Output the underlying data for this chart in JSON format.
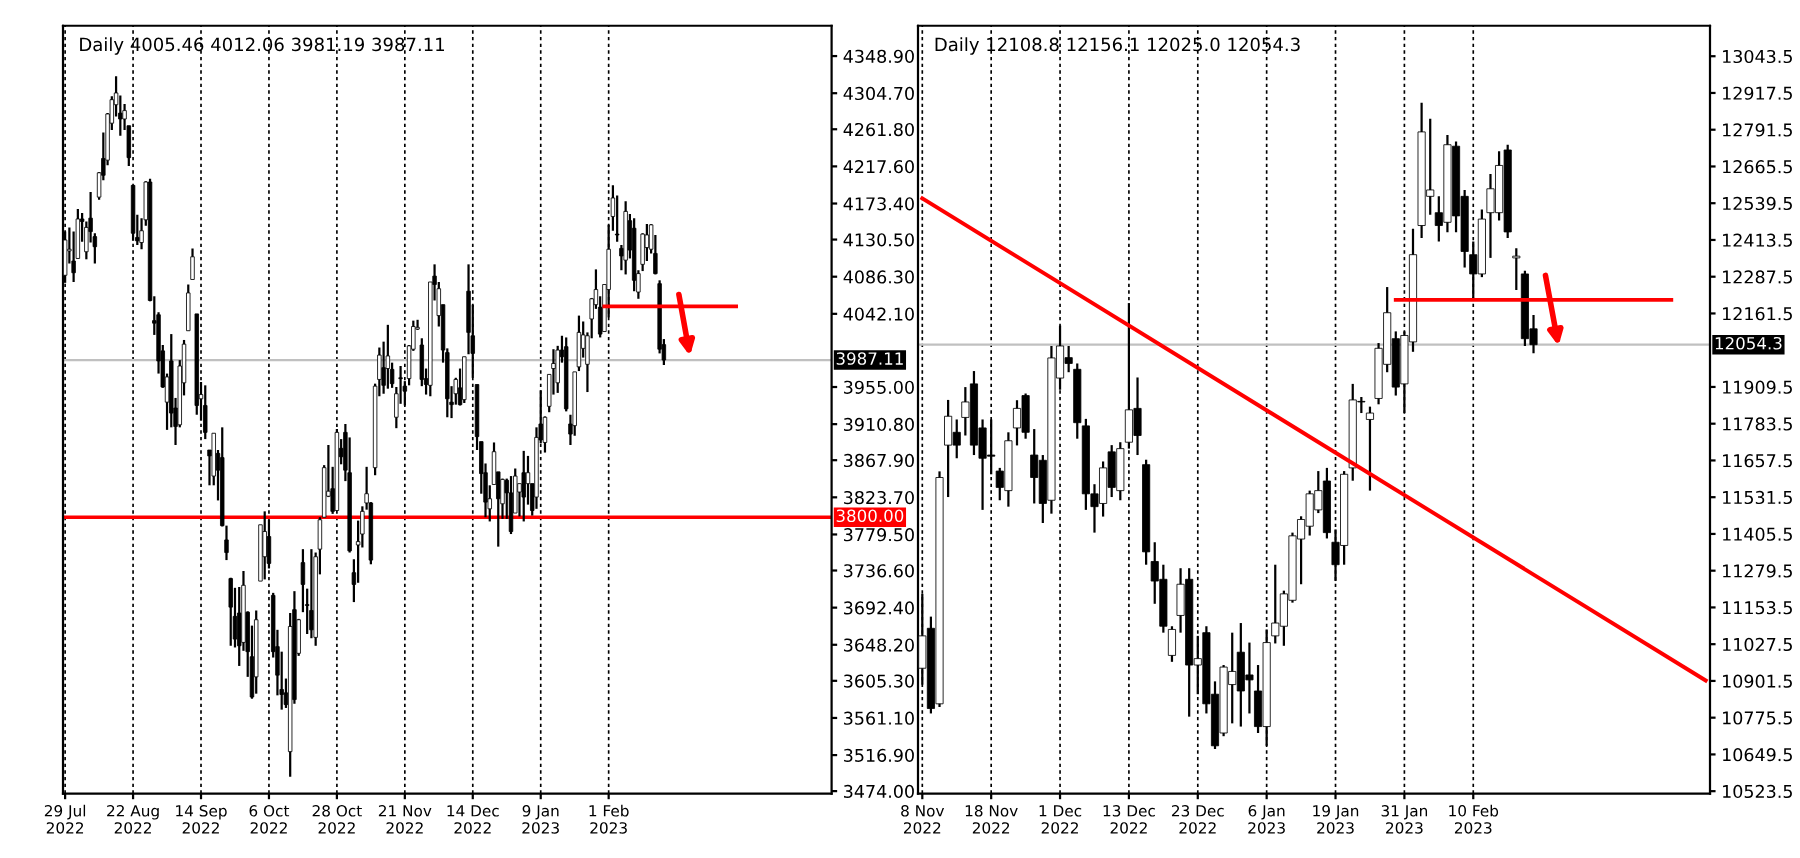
{
  "chart_data": [
    {
      "type": "candlestick",
      "title": "Daily 4005.46 4012.06 3981.19 3987.11",
      "categories": [
        "29 Jul 2022",
        null,
        null,
        null,
        null,
        null,
        null,
        null,
        null,
        null,
        null,
        null,
        null,
        null,
        null,
        null,
        "22 Aug 2022",
        null,
        null,
        null,
        null,
        null,
        null,
        null,
        null,
        null,
        null,
        null,
        null,
        null,
        null,
        null,
        "14 Sep 2022",
        null,
        null,
        null,
        null,
        null,
        null,
        null,
        null,
        null,
        null,
        null,
        null,
        null,
        null,
        null,
        "6 Oct 2022",
        null,
        null,
        null,
        null,
        null,
        null,
        null,
        null,
        null,
        null,
        null,
        null,
        null,
        null,
        null,
        "28 Oct 2022",
        null,
        null,
        null,
        null,
        null,
        null,
        null,
        null,
        null,
        null,
        null,
        null,
        null,
        null,
        null,
        "21 Nov 2022",
        null,
        null,
        null,
        null,
        null,
        null,
        null,
        null,
        null,
        null,
        null,
        null,
        null,
        null,
        null,
        "14 Dec 2022",
        null,
        null,
        null,
        null,
        null,
        null,
        null,
        null,
        null,
        null,
        null,
        null,
        null,
        null,
        null,
        "9 Jan 2023",
        null,
        null,
        null,
        null,
        null,
        null,
        null,
        null,
        null,
        null,
        null,
        null,
        null,
        null,
        null,
        "1 Feb 2023",
        null,
        null,
        null,
        null,
        null,
        null,
        null,
        null,
        null,
        null,
        null,
        null,
        null,
        null,
        null,
        null,
        null,
        null,
        null,
        null,
        null,
        null,
        null,
        null,
        null,
        null,
        null,
        null,
        null,
        null,
        null,
        null,
        null,
        null,
        null,
        null,
        null,
        null,
        null,
        null,
        null,
        null,
        null,
        null,
        null,
        null,
        null,
        null,
        null,
        null,
        null,
        null
      ],
      "ohlc": [
        [
          4088,
          4140,
          4079,
          4130
        ],
        [
          4117,
          4145,
          4102,
          4119
        ],
        [
          4105,
          4140,
          4080,
          4091
        ],
        [
          4108,
          4167,
          4108,
          4155
        ],
        [
          4155,
          4162,
          4128,
          4152
        ],
        [
          4116,
          4152,
          4107,
          4145
        ],
        [
          4156,
          4187,
          4127,
          4140
        ],
        [
          4134,
          4138,
          4102,
          4122
        ],
        [
          4181,
          4211,
          4178,
          4210
        ],
        [
          4227,
          4258,
          4201,
          4207
        ],
        [
          4225,
          4281,
          4219,
          4280
        ],
        [
          4269,
          4301,
          4261,
          4297
        ],
        [
          4291,
          4325,
          4277,
          4305
        ],
        [
          4281,
          4302,
          4254,
          4274
        ],
        [
          4274,
          4292,
          4261,
          4284
        ],
        [
          4266,
          4266,
          4218,
          4228
        ],
        [
          4195,
          4195,
          4129,
          4138
        ],
        [
          4133,
          4160,
          4124,
          4129
        ],
        [
          4127,
          4156,
          4119,
          4141
        ],
        [
          4154,
          4200,
          4147,
          4199
        ],
        [
          4199,
          4203,
          4057,
          4058
        ],
        [
          4034,
          4063,
          4017,
          4031
        ],
        [
          4041,
          4044,
          3971,
          3986
        ],
        [
          3998,
          4005,
          3954,
          3955
        ],
        [
          3937,
          3971,
          3904,
          3967
        ],
        [
          3986,
          4018,
          3907,
          3924
        ],
        [
          3930,
          3942,
          3886,
          3908
        ],
        [
          3910,
          3987,
          3907,
          3980
        ],
        [
          3960,
          4011,
          3945,
          4006
        ],
        [
          4022,
          4077,
          4022,
          4067
        ],
        [
          4083,
          4120,
          4083,
          4110
        ],
        [
          4042,
          4042,
          3922,
          3933
        ],
        [
          3941,
          3961,
          3915,
          3946
        ],
        [
          3933,
          3957,
          3893,
          3901
        ],
        [
          3880,
          3880,
          3838,
          3873
        ],
        [
          3849,
          3900,
          3838,
          3900
        ],
        [
          3876,
          3880,
          3820,
          3856
        ],
        [
          3871,
          3907,
          3789,
          3790
        ],
        [
          3773,
          3790,
          3749,
          3758
        ],
        [
          3727,
          3728,
          3647,
          3693
        ],
        [
          3682,
          3716,
          3645,
          3655
        ],
        [
          3686,
          3717,
          3623,
          3647
        ],
        [
          3651,
          3736,
          3641,
          3719
        ],
        [
          3687,
          3688,
          3610,
          3640
        ],
        [
          3634,
          3671,
          3584,
          3586
        ],
        [
          3610,
          3689,
          3590,
          3678
        ],
        [
          3724,
          3791,
          3724,
          3791
        ],
        [
          3753,
          3807,
          3726,
          3783
        ],
        [
          3777,
          3797,
          3739,
          3745
        ],
        [
          3707,
          3710,
          3633,
          3640
        ],
        [
          3646,
          3666,
          3588,
          3612
        ],
        [
          3595,
          3640,
          3571,
          3589
        ],
        [
          3591,
          3608,
          3573,
          3577
        ],
        [
          3521,
          3686,
          3491,
          3670
        ],
        [
          3690,
          3712,
          3578,
          3583
        ],
        [
          3638,
          3679,
          3635,
          3678
        ],
        [
          3746,
          3762,
          3687,
          3720
        ],
        [
          3696,
          3715,
          3661,
          3695
        ],
        [
          3689,
          3762,
          3656,
          3666
        ],
        [
          3657,
          3758,
          3647,
          3753
        ],
        [
          3762,
          3800,
          3732,
          3797
        ],
        [
          3800,
          3862,
          3800,
          3859
        ],
        [
          3825,
          3886,
          3824,
          3831
        ],
        [
          3834,
          3860,
          3804,
          3807
        ],
        [
          3808,
          3905,
          3808,
          3901
        ],
        [
          3882,
          3893,
          3863,
          3872
        ],
        [
          3901,
          3911,
          3843,
          3856
        ],
        [
          3853,
          3895,
          3758,
          3760
        ],
        [
          3734,
          3750,
          3699,
          3720
        ],
        [
          3767,
          3796,
          3722,
          3771
        ],
        [
          3780,
          3813,
          3764,
          3807
        ],
        [
          3817,
          3860,
          3809,
          3828
        ],
        [
          3817,
          3818,
          3744,
          3749
        ],
        [
          3859,
          3959,
          3850,
          3956
        ],
        [
          3964,
          4002,
          3944,
          3993
        ],
        [
          3978,
          4009,
          3947,
          3957
        ],
        [
          3977,
          4029,
          3953,
          3992
        ],
        [
          3976,
          3984,
          3954,
          3959
        ],
        [
          3919,
          3955,
          3906,
          3947
        ],
        [
          3966,
          3980,
          3935,
          3965
        ],
        [
          3956,
          3962,
          3933,
          3950
        ],
        [
          3965,
          4005,
          3957,
          4004
        ],
        [
          4000,
          4034,
          3998,
          4027
        ],
        [
          4024,
          4035,
          4023,
          4026
        ],
        [
          4005,
          4013,
          3956,
          3964
        ],
        [
          3965,
          3977,
          3946,
          3958
        ],
        [
          3957,
          4080,
          3944,
          4080
        ],
        [
          4087,
          4101,
          4058,
          4077
        ],
        [
          4040,
          4080,
          4027,
          4072
        ],
        [
          4053,
          4053,
          3984,
          3999
        ],
        [
          3996,
          4001,
          3919,
          3941
        ],
        [
          3937,
          3956,
          3918,
          3934
        ],
        [
          3947,
          3966,
          3934,
          3964
        ],
        [
          3954,
          3977,
          3933,
          3934
        ],
        [
          3940,
          3991,
          3936,
          3991
        ],
        [
          4069,
          4101,
          3994,
          4020
        ],
        [
          4016,
          4053,
          3966,
          3995
        ],
        [
          3958,
          3958,
          3880,
          3896
        ],
        [
          3890,
          3890,
          3828,
          3852
        ],
        [
          3853,
          3864,
          3800,
          3818
        ],
        [
          3810,
          3838,
          3795,
          3822
        ],
        [
          3839,
          3889,
          3839,
          3878
        ],
        [
          3854,
          3854,
          3765,
          3822
        ],
        [
          3816,
          3846,
          3798,
          3845
        ],
        [
          3844,
          3846,
          3798,
          3829
        ],
        [
          3829,
          3849,
          3780,
          3783
        ],
        [
          3805,
          3858,
          3805,
          3849
        ],
        [
          3830,
          3840,
          3801,
          3840
        ],
        [
          3853,
          3879,
          3795,
          3824
        ],
        [
          3840,
          3873,
          3815,
          3853
        ],
        [
          3840,
          3840,
          3802,
          3808
        ],
        [
          3824,
          3907,
          3810,
          3895
        ],
        [
          3911,
          3951,
          3888,
          3892
        ],
        [
          3889,
          3920,
          3877,
          3919
        ],
        [
          3932,
          3970,
          3925,
          3970
        ],
        [
          3977,
          4000,
          3946,
          3983
        ],
        [
          3960,
          4004,
          3948,
          3999
        ],
        [
          3999,
          4016,
          3984,
          3991
        ],
        [
          4003,
          4014,
          3926,
          3929
        ],
        [
          3911,
          3922,
          3886,
          3899
        ],
        [
          3909,
          3973,
          3897,
          3973
        ],
        [
          3979,
          4040,
          3974,
          4020
        ],
        [
          4001,
          4033,
          3990,
          4017
        ],
        [
          3982,
          4020,
          3949,
          4016
        ],
        [
          4036,
          4061,
          4013,
          4060
        ],
        [
          4053,
          4095,
          4048,
          4071
        ],
        [
          4050,
          4063,
          4014,
          4018
        ],
        [
          4021,
          4077,
          4021,
          4077
        ],
        [
          4071,
          4148,
          4038,
          4119
        ],
        [
          4158,
          4195,
          4141,
          4180
        ],
        [
          4137,
          4183,
          4128,
          4136
        ],
        [
          4120,
          4124,
          4094,
          4111
        ],
        [
          4106,
          4176,
          4089,
          4164
        ],
        [
          4153,
          4161,
          4108,
          4118
        ],
        [
          4144,
          4156,
          4069,
          4082
        ],
        [
          4068,
          4094,
          4060,
          4090
        ],
        [
          4101,
          4138,
          4093,
          4137
        ],
        [
          4121,
          4149,
          4105,
          4136
        ],
        [
          4119,
          4149,
          4114,
          4148
        ],
        [
          4114,
          4136,
          4089,
          4090
        ],
        [
          4078,
          4082,
          3995,
          4000
        ],
        [
          4005.46,
          4012.06,
          3981.19,
          3987.11
        ],
        null,
        null,
        null,
        null,
        null,
        null,
        null,
        null,
        null,
        null,
        null,
        null,
        null,
        null,
        null,
        null,
        null,
        null,
        null,
        null,
        null,
        null,
        null,
        null,
        null,
        null,
        null,
        null,
        null,
        null,
        null,
        null,
        null,
        null,
        null,
        null,
        null,
        null,
        null
      ],
      "series": [
        {
          "type": "line",
          "color": "#ff0000",
          "values": [
            null,
            null,
            null,
            null,
            null,
            null,
            null,
            null,
            null,
            null,
            null,
            null,
            null,
            null,
            null,
            null,
            null,
            null,
            null,
            null,
            null,
            null,
            null,
            null,
            null,
            null,
            null,
            null,
            null,
            null,
            null,
            null,
            null,
            null,
            null,
            null,
            null,
            null,
            null,
            null,
            null,
            null,
            null,
            null,
            null,
            null,
            null,
            null,
            null,
            null,
            null,
            null,
            null,
            null,
            null,
            null,
            null,
            null,
            null,
            null,
            null,
            null,
            null,
            null,
            null,
            null,
            null,
            null,
            null,
            null,
            null,
            null,
            null,
            null,
            null,
            null,
            null,
            null,
            null,
            null,
            null,
            null,
            null,
            null,
            null,
            null,
            null,
            null,
            null,
            null,
            null,
            null,
            null,
            null,
            null,
            null,
            null,
            null,
            null,
            null,
            null,
            null,
            null,
            null,
            null,
            null,
            null,
            null,
            null,
            null,
            null,
            null,
            null,
            null,
            null,
            null,
            null,
            null,
            null,
            null,
            null,
            null,
            null,
            null,
            null,
            null,
            null,
            4051,
            null,
            null,
            null,
            null,
            null,
            null,
            null,
            null,
            null,
            null,
            null,
            null,
            null,
            null,
            null,
            null,
            null,
            null,
            null,
            null,
            null,
            null,
            null,
            null,
            null,
            null,
            null,
            null,
            null,
            null,
            4051,
            null,
            null,
            null,
            null,
            null,
            null,
            null,
            null,
            null,
            null,
            null,
            null,
            null,
            null,
            null,
            null,
            null,
            null,
            null,
            null,
            null,
            null
          ]
        }
      ],
      "ylim": [
        3471,
        4385
      ],
      "yticks": [
        {
          "value": 4348.9,
          "label": "4348.90"
        },
        {
          "value": 4304.7,
          "label": "4304.70"
        },
        {
          "value": 4261.8,
          "label": "4261.80"
        },
        {
          "value": 4217.6,
          "label": "4217.60"
        },
        {
          "value": 4173.4,
          "label": "4173.40"
        },
        {
          "value": 4130.5,
          "label": "4130.50"
        },
        {
          "value": 4086.3,
          "label": "4086.30"
        },
        {
          "value": 4042.1,
          "label": "4042.10"
        },
        {
          "value": 3955,
          "label": "3955.00"
        },
        {
          "value": 3910.8,
          "label": "3910.80"
        },
        {
          "value": 3867.9,
          "label": "3867.90"
        },
        {
          "value": 3823.7,
          "label": "3823.70"
        },
        {
          "value": 3779.5,
          "label": "3779.50"
        },
        {
          "value": 3736.6,
          "label": "3736.60"
        },
        {
          "value": 3692.4,
          "label": "3692.40"
        },
        {
          "value": 3648.2,
          "label": "3648.20"
        },
        {
          "value": 3605.3,
          "label": "3605.30"
        },
        {
          "value": 3561.1,
          "label": "3561.10"
        },
        {
          "value": 3516.9,
          "label": "3516.90"
        },
        {
          "value": 3474,
          "label": "3474.00"
        }
      ],
      "ref_lines": [
        {
          "axis": "y",
          "value": 3800,
          "label": "3800.00",
          "color": "#ff0000"
        },
        {
          "axis": "y",
          "value": 3987.11,
          "label": "3987.11",
          "color": "#c0c0c0"
        }
      ],
      "grid": "x"
    },
    {
      "type": "candlestick",
      "title": "Daily 12108.8 12156.1 12025.0 12054.3",
      "categories": [
        "8 Nov 2022",
        null,
        null,
        null,
        null,
        null,
        null,
        null,
        "18 Nov 2022",
        null,
        null,
        null,
        null,
        null,
        null,
        null,
        "1 Dec 2022",
        null,
        null,
        null,
        null,
        null,
        null,
        null,
        "13 Dec 2022",
        null,
        null,
        null,
        null,
        null,
        null,
        null,
        "23 Dec 2022",
        null,
        null,
        null,
        null,
        null,
        null,
        null,
        "6 Jan 2023",
        null,
        null,
        null,
        null,
        null,
        null,
        null,
        "19 Jan 2023",
        null,
        null,
        null,
        null,
        null,
        null,
        null,
        "31 Jan 2023",
        null,
        null,
        null,
        null,
        null,
        null,
        null,
        "10 Feb 2023",
        null,
        null,
        null,
        null,
        null,
        null,
        null,
        null,
        null,
        null,
        null,
        null,
        null,
        null,
        null,
        null,
        null,
        null,
        null,
        null,
        null,
        null,
        null,
        null,
        null,
        null,
        null
      ],
      "ohlc": [
        [
          10945,
          11200,
          10889,
          11056
        ],
        [
          11082,
          11122,
          10790,
          10807
        ],
        [
          10823,
          11620,
          10812,
          11599
        ],
        [
          11710,
          11865,
          11532,
          11809
        ],
        [
          11754,
          11798,
          11665,
          11710
        ],
        [
          11805,
          11909,
          11743,
          11858
        ],
        [
          11920,
          11964,
          11676,
          11710
        ],
        [
          11769,
          11798,
          11488,
          11665
        ],
        [
          11676,
          11798,
          11610,
          11672
        ],
        [
          11621,
          11632,
          11521,
          11565
        ],
        [
          11554,
          11754,
          11499,
          11725
        ],
        [
          11769,
          11864,
          11709,
          11836
        ],
        [
          11880,
          11887,
          11732,
          11754
        ],
        [
          11676,
          11765,
          11510,
          11599
        ],
        [
          11658,
          11676,
          11443,
          11510
        ],
        [
          11521,
          12050,
          11475,
          12009
        ],
        [
          11940,
          12120,
          11900,
          12050
        ],
        [
          12010,
          12050,
          11960,
          11990
        ],
        [
          11970,
          11990,
          11732,
          11787
        ],
        [
          11776,
          11800,
          11488,
          11543
        ],
        [
          11543,
          11576,
          11410,
          11499
        ],
        [
          11510,
          11654,
          11465,
          11632
        ],
        [
          11687,
          11710,
          11532,
          11565
        ],
        [
          11554,
          11720,
          11521,
          11698
        ],
        [
          11720,
          12197,
          11698,
          11831
        ],
        [
          11836,
          11942,
          11676,
          11743
        ],
        [
          11643,
          11660,
          11300,
          11344
        ],
        [
          11311,
          11377,
          11166,
          11244
        ],
        [
          11250,
          11300,
          11067,
          11089
        ],
        [
          10989,
          11089,
          10967,
          11078
        ],
        [
          11126,
          11288,
          11067,
          11233
        ],
        [
          11250,
          11288,
          10779,
          10956
        ],
        [
          10956,
          11056,
          10856,
          10978
        ],
        [
          11067,
          11089,
          10790,
          10823
        ],
        [
          10856,
          10900,
          10668,
          10679
        ],
        [
          10723,
          10956,
          10712,
          10949
        ],
        [
          10889,
          11067,
          10756,
          10934
        ],
        [
          11000,
          11100,
          10745,
          10867
        ],
        [
          10922,
          11033,
          10790,
          10905
        ],
        [
          10867,
          10956,
          10723,
          10745
        ],
        [
          10745,
          11078,
          10679,
          11033
        ],
        [
          11056,
          11300,
          11030,
          11100
        ],
        [
          11089,
          11211,
          11022,
          11200
        ],
        [
          11178,
          11410,
          11170,
          11399
        ],
        [
          11388,
          11466,
          11233,
          11455
        ],
        [
          11432,
          11554,
          11400,
          11543
        ],
        [
          11488,
          11621,
          11477,
          11554
        ],
        [
          11587,
          11632,
          11390,
          11410
        ],
        [
          11377,
          11421,
          11244,
          11300
        ],
        [
          11366,
          11621,
          11300,
          11610
        ],
        [
          11632,
          11920,
          11588,
          11865
        ],
        [
          11860,
          11875,
          11820,
          11858
        ],
        [
          11798,
          11842,
          11554,
          11820
        ],
        [
          11870,
          12060,
          11850,
          12042
        ],
        [
          11987,
          12252,
          11960,
          12164
        ],
        [
          12075,
          12100,
          11880,
          11909
        ],
        [
          11920,
          12100,
          11820,
          12086
        ],
        [
          12064,
          12452,
          12030,
          12363
        ],
        [
          12463,
          12884,
          12420,
          12784
        ],
        [
          12563,
          12829,
          12500,
          12585
        ],
        [
          12507,
          12563,
          12408,
          12463
        ],
        [
          12474,
          12773,
          12440,
          12740
        ],
        [
          12735,
          12751,
          12440,
          12496
        ],
        [
          12563,
          12585,
          12319,
          12374
        ],
        [
          12363,
          12408,
          12208,
          12297
        ],
        [
          12297,
          12518,
          12286,
          12485
        ],
        [
          12507,
          12640,
          12352,
          12589
        ],
        [
          12507,
          12718,
          12480,
          12669
        ],
        [
          12722,
          12740,
          12420,
          12441
        ],
        [
          12352,
          12385,
          12242,
          12358
        ],
        [
          12297,
          12308,
          12050,
          12075
        ],
        [
          12108.8,
          12156.1,
          12025.0,
          12054.3
        ],
        null,
        null,
        null,
        null,
        null,
        null,
        null,
        null,
        null,
        null,
        null,
        null,
        null,
        null,
        null,
        null,
        null,
        null,
        null,
        null
      ],
      "series": [
        {
          "type": "line",
          "color": "#ff0000",
          "values": [
            12556,
            null,
            null,
            null,
            null,
            null,
            null,
            null,
            null,
            null,
            null,
            null,
            null,
            null,
            null,
            null,
            null,
            null,
            null,
            null,
            null,
            null,
            null,
            null,
            null,
            null,
            null,
            null,
            null,
            null,
            null,
            null,
            null,
            null,
            null,
            null,
            null,
            null,
            null,
            null,
            null,
            null,
            null,
            null,
            null,
            null,
            null,
            null,
            null,
            null,
            null,
            null,
            null,
            null,
            null,
            null,
            null,
            null,
            null,
            null,
            null,
            null,
            null,
            null,
            null,
            null,
            null,
            null,
            null,
            null,
            null,
            null,
            null,
            null,
            null,
            null,
            null,
            null,
            null,
            null,
            null,
            null,
            null,
            null,
            null,
            null,
            null,
            null,
            null,
            null,
            null,
            10903
          ]
        },
        {
          "type": "line",
          "color": "#ff0000",
          "values": [
            null,
            null,
            null,
            null,
            null,
            null,
            null,
            null,
            null,
            null,
            null,
            null,
            null,
            null,
            null,
            null,
            null,
            null,
            null,
            null,
            null,
            null,
            null,
            null,
            null,
            null,
            null,
            null,
            null,
            null,
            null,
            null,
            null,
            null,
            null,
            null,
            null,
            null,
            null,
            null,
            null,
            null,
            null,
            null,
            null,
            null,
            null,
            null,
            null,
            null,
            null,
            null,
            null,
            null,
            null,
            12208,
            null,
            null,
            null,
            null,
            null,
            null,
            null,
            null,
            null,
            null,
            null,
            null,
            null,
            null,
            null,
            null,
            null,
            null,
            null,
            null,
            null,
            null,
            null,
            null,
            null,
            null,
            null,
            null,
            null,
            null,
            null,
            12208,
            null,
            null,
            null,
            null
          ]
        }
      ],
      "ylim": [
        10515,
        13148
      ],
      "yticks": [
        13043.5,
        12917.5,
        12791.5,
        12665.5,
        12539.5,
        12413.5,
        12287.5,
        12161.5,
        11909.5,
        11783.5,
        11657.5,
        11531.5,
        11405.5,
        11279.5,
        11153.5,
        11027.5,
        10901.5,
        10775.5,
        10649.5,
        10523.5
      ],
      "ref_lines": [
        {
          "axis": "y",
          "value": 12054.3,
          "label": "12054.3",
          "color": "#c0c0c0"
        }
      ],
      "grid": "x"
    }
  ]
}
